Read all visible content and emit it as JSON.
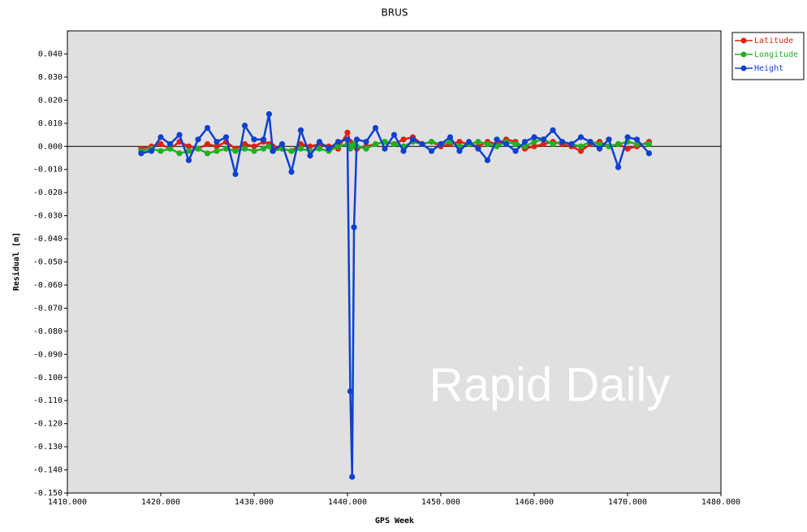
{
  "chart_data": {
    "type": "line",
    "title": "BRUS",
    "x_label": "GPS Week",
    "y_label": "Residual [m]",
    "annotation": "Rapid Daily",
    "xlim": [
      1410,
      1480
    ],
    "xticks": [
      {
        "value": 1410,
        "label": "1410.000"
      },
      {
        "value": 1420,
        "label": "1420.000"
      },
      {
        "value": 1430,
        "label": "1430.000"
      },
      {
        "value": 1440,
        "label": "1440.000"
      },
      {
        "value": 1450,
        "label": "1450.000"
      },
      {
        "value": 1460,
        "label": "1460.000"
      },
      {
        "value": 1470,
        "label": "1470.000"
      },
      {
        "value": 1480,
        "label": "1480.000"
      }
    ],
    "ylim": [
      -0.15,
      0.05
    ],
    "yticks": [
      {
        "value": -0.15,
        "label": "-0.150"
      },
      {
        "value": -0.14,
        "label": "-0.140"
      },
      {
        "value": -0.13,
        "label": "-0.130"
      },
      {
        "value": -0.12,
        "label": "-0.120"
      },
      {
        "value": -0.11,
        "label": "-0.110"
      },
      {
        "value": -0.1,
        "label": "-0.100"
      },
      {
        "value": -0.09,
        "label": "-0.090"
      },
      {
        "value": -0.08,
        "label": "-0.080"
      },
      {
        "value": -0.07,
        "label": "-0.070"
      },
      {
        "value": -0.06,
        "label": "-0.060"
      },
      {
        "value": -0.05,
        "label": "-0.050"
      },
      {
        "value": -0.04,
        "label": "-0.040"
      },
      {
        "value": -0.03,
        "label": "-0.030"
      },
      {
        "value": -0.02,
        "label": "-0.020"
      },
      {
        "value": -0.01,
        "label": "-0.010"
      },
      {
        "value": 0,
        "label": "0.000"
      },
      {
        "value": 0.01,
        "label": "0.010"
      },
      {
        "value": 0.02,
        "label": "0.020"
      },
      {
        "value": 0.03,
        "label": "0.030"
      },
      {
        "value": 0.04,
        "label": "0.040"
      }
    ],
    "x": [
      1417.9,
      1419,
      1420,
      1421,
      1422,
      1423,
      1424,
      1425,
      1426,
      1427,
      1428,
      1429,
      1430,
      1431,
      1431.6,
      1432,
      1433,
      1434,
      1435,
      1436,
      1437,
      1438,
      1439,
      1440,
      1440.3,
      1440.5,
      1440.7,
      1441,
      1442,
      1443,
      1444,
      1445,
      1446,
      1447,
      1448,
      1449,
      1450,
      1451,
      1452,
      1453,
      1454,
      1455,
      1456,
      1457,
      1458,
      1459,
      1460,
      1461,
      1462,
      1463,
      1464,
      1465,
      1466,
      1467,
      1468,
      1469,
      1470,
      1471,
      1472.3
    ],
    "series": [
      {
        "name": "Latitude",
        "color": "#e02010",
        "values": [
          -0.001,
          0,
          0.001,
          -0.001,
          0.002,
          0,
          -0.001,
          0.001,
          0,
          0.002,
          -0.001,
          0.001,
          0,
          0.002,
          0.001,
          0,
          -0.001,
          -0.002,
          0.001,
          0,
          0.001,
          0,
          -0.001,
          0.006,
          0.002,
          0,
          0.001,
          -0.001,
          0,
          0.001,
          0.002,
          0.001,
          0.003,
          0.004,
          0.001,
          0.002,
          0,
          0.001,
          0.002,
          0.001,
          0,
          0.002,
          0.001,
          0.003,
          0.002,
          -0.001,
          0,
          0.001,
          0.002,
          0.001,
          0,
          -0.002,
          0.001,
          0.002,
          0,
          0.001,
          -0.001,
          0,
          0.002
        ]
      },
      {
        "name": "Longitude",
        "color": "#20b020",
        "values": [
          -0.002,
          -0.001,
          -0.002,
          -0.001,
          -0.003,
          -0.002,
          -0.001,
          -0.003,
          -0.002,
          -0.001,
          -0.002,
          -0.001,
          -0.002,
          -0.001,
          0,
          -0.002,
          -0.001,
          -0.002,
          -0.001,
          -0.002,
          -0.001,
          -0.002,
          0,
          0.001,
          -0.001,
          0,
          0.001,
          0,
          -0.001,
          0.001,
          0.002,
          0.001,
          0,
          0.002,
          0.001,
          0.002,
          0.001,
          0.002,
          0,
          0.001,
          0.002,
          0.001,
          0,
          0.002,
          0.001,
          0,
          0.002,
          0.003,
          0.001,
          0.002,
          0.001,
          0,
          0.002,
          0.001,
          0,
          0.001,
          0.002,
          0.001,
          0.001
        ]
      },
      {
        "name": "Height",
        "color": "#1040d0",
        "values": [
          -0.003,
          -0.002,
          0.004,
          0.001,
          0.005,
          -0.006,
          0.003,
          0.008,
          0.002,
          0.004,
          -0.012,
          0.009,
          0.003,
          0.003,
          0.014,
          -0.002,
          0.001,
          -0.011,
          0.007,
          -0.004,
          0.002,
          -0.001,
          0.002,
          0.003,
          -0.106,
          -0.143,
          -0.035,
          0.003,
          0.002,
          0.008,
          -0.001,
          0.005,
          -0.002,
          0.003,
          0.001,
          -0.002,
          0.001,
          0.004,
          -0.002,
          0.002,
          -0.001,
          -0.006,
          0.003,
          0.001,
          -0.002,
          0.002,
          0.004,
          0.003,
          0.007,
          0.002,
          0.001,
          0.004,
          0.002,
          -0.001,
          0.003,
          -0.009,
          0.004,
          0.003,
          -0.003
        ]
      }
    ]
  }
}
